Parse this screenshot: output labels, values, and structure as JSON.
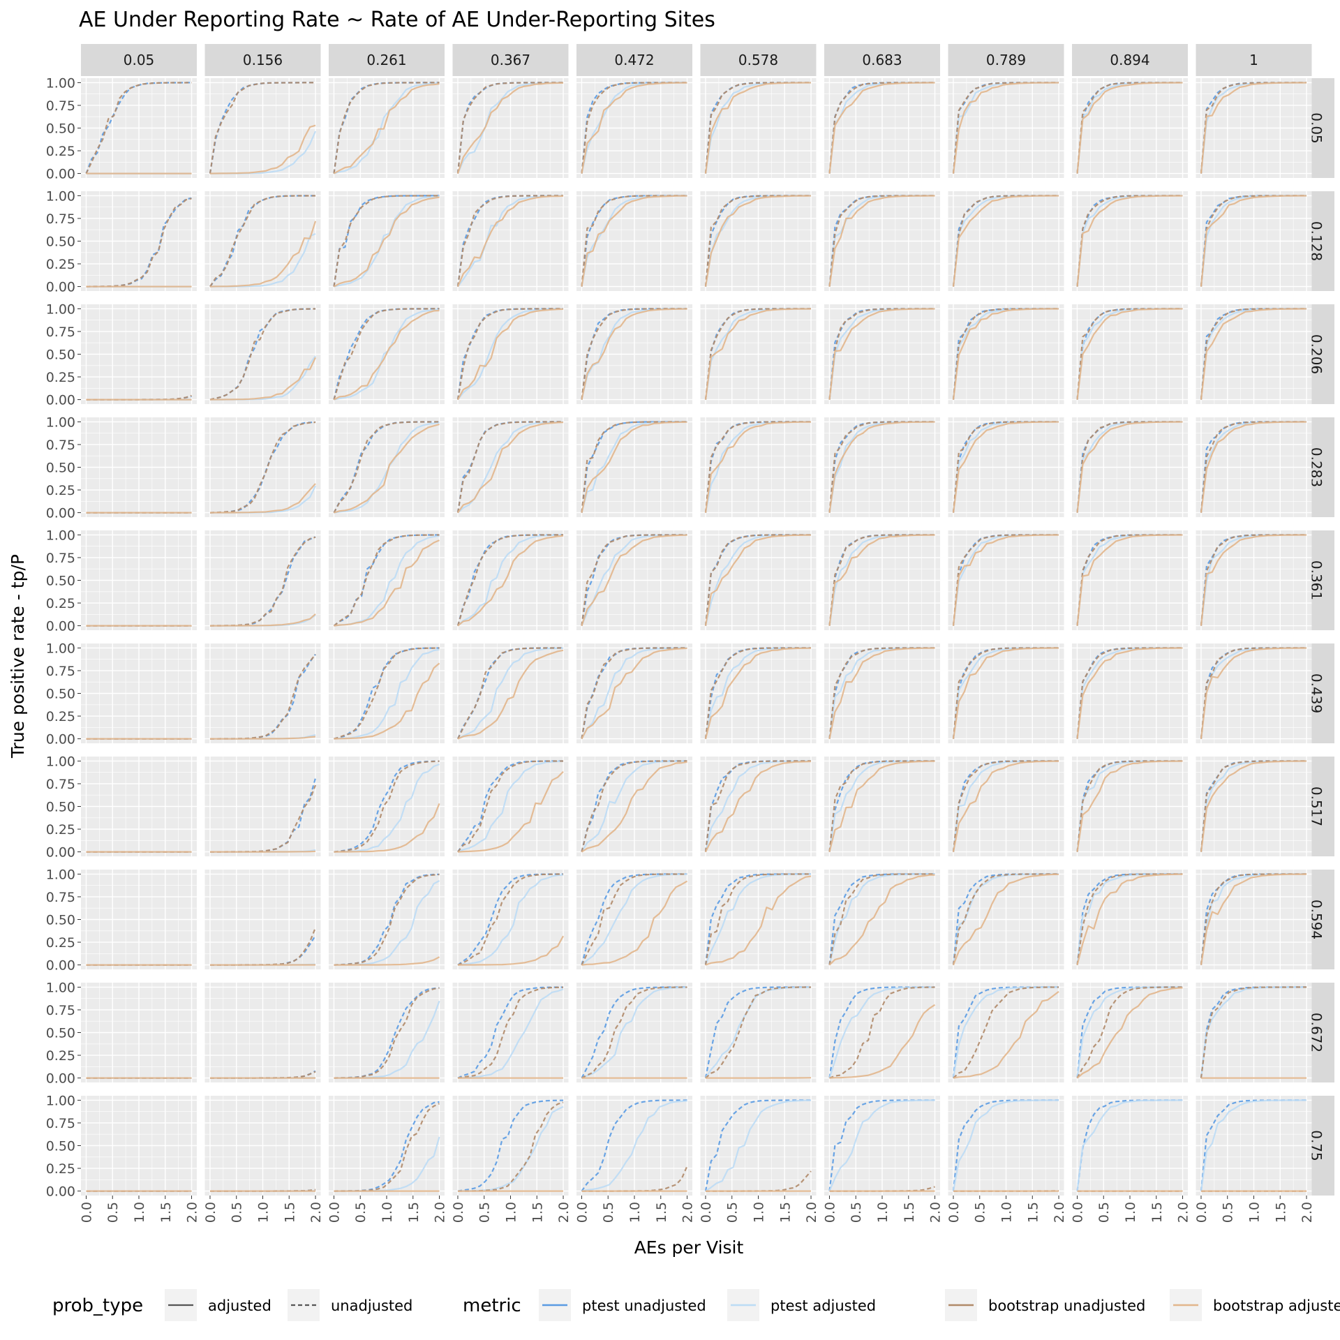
{
  "chart_data": {
    "type": "line",
    "title": "AE Under Reporting Rate ~ Rate of AE Under-Reporting Sites",
    "xlabel": "AEs per Visit",
    "ylabel": "True positive rate - tp/P",
    "xlim": [
      0,
      2
    ],
    "ylim": [
      0,
      1
    ],
    "x_ticks": [
      "0.0",
      "0.5",
      "1.0",
      "1.5",
      "2.0"
    ],
    "y_ticks": [
      "0.00",
      "0.25",
      "0.50",
      "0.75",
      "1.00"
    ],
    "col_facets": [
      "0.05",
      "0.156",
      "0.261",
      "0.367",
      "0.472",
      "0.578",
      "0.683",
      "0.789",
      "0.894",
      "1"
    ],
    "row_facets": [
      "0.05",
      "0.128",
      "0.206",
      "0.283",
      "0.361",
      "0.439",
      "0.517",
      "0.594",
      "0.672",
      "0.75"
    ],
    "x": [
      0.0,
      0.105,
      0.211,
      0.316,
      0.421,
      0.526,
      0.632,
      0.737,
      0.842,
      0.947,
      1.053,
      1.158,
      1.263,
      1.368,
      1.474,
      1.579,
      1.684,
      1.789,
      1.895,
      2.0
    ],
    "series": [
      {
        "metric": "ptest unadjusted",
        "prob_type": "unadjusted",
        "color": "#5a9be3",
        "dashed": true,
        "midpoint": [
          [
            0.4,
            0.2,
            0.1,
            0.06,
            0.03,
            0.02,
            0.01,
            0.005,
            0.003,
            0.001
          ],
          [
            1.4,
            0.5,
            0.2,
            0.12,
            0.06,
            0.03,
            0.02,
            0.01,
            0.005,
            0.003
          ],
          [
            2.5,
            0.8,
            0.3,
            0.15,
            0.08,
            0.05,
            0.03,
            0.02,
            0.01,
            0.005
          ],
          [
            3.5,
            1.1,
            0.45,
            0.2,
            0.1,
            0.06,
            0.04,
            0.03,
            0.015,
            0.01
          ],
          [
            4.5,
            1.4,
            0.6,
            0.3,
            0.15,
            0.08,
            0.05,
            0.04,
            0.02,
            0.015
          ],
          [
            5.5,
            1.6,
            0.75,
            0.4,
            0.2,
            0.1,
            0.06,
            0.05,
            0.03,
            0.02
          ],
          [
            6.5,
            1.8,
            0.9,
            0.5,
            0.25,
            0.12,
            0.08,
            0.06,
            0.04,
            0.03
          ],
          [
            7.5,
            2.1,
            1.05,
            0.6,
            0.3,
            0.15,
            0.1,
            0.07,
            0.05,
            0.04
          ],
          [
            8.5,
            2.4,
            1.2,
            0.7,
            0.4,
            0.2,
            0.12,
            0.08,
            0.06,
            0.05
          ],
          [
            9.5,
            2.7,
            1.35,
            0.85,
            0.5,
            0.25,
            0.15,
            0.1,
            0.07,
            0.06
          ]
        ],
        "steepness": 6.2
      },
      {
        "metric": "ptest adjusted",
        "prob_type": "adjusted",
        "color": "#bcdcf5",
        "dashed": false,
        "midpoint": [
          [
            5,
            2.0,
            0.9,
            0.5,
            0.28,
            0.15,
            0.08,
            0.05,
            0.03,
            0.02
          ],
          [
            5,
            1.9,
            0.95,
            0.55,
            0.3,
            0.18,
            0.1,
            0.06,
            0.04,
            0.03
          ],
          [
            5,
            2.0,
            1.0,
            0.6,
            0.33,
            0.2,
            0.12,
            0.07,
            0.05,
            0.04
          ],
          [
            5,
            2.2,
            1.05,
            0.65,
            0.38,
            0.23,
            0.14,
            0.08,
            0.06,
            0.05
          ],
          [
            5,
            2.4,
            1.1,
            0.7,
            0.42,
            0.26,
            0.16,
            0.1,
            0.07,
            0.06
          ],
          [
            5,
            2.6,
            1.2,
            0.75,
            0.48,
            0.3,
            0.19,
            0.12,
            0.08,
            0.07
          ],
          [
            5,
            2.8,
            1.35,
            0.85,
            0.55,
            0.35,
            0.22,
            0.14,
            0.1,
            0.08
          ],
          [
            5,
            3.0,
            1.5,
            1.05,
            0.65,
            0.42,
            0.27,
            0.17,
            0.12,
            0.1
          ],
          [
            5,
            3.2,
            1.7,
            1.25,
            0.8,
            0.55,
            0.35,
            0.2,
            0.14,
            0.12
          ],
          [
            5,
            3.4,
            1.95,
            1.45,
            1.0,
            0.7,
            0.45,
            0.25,
            0.17,
            0.14
          ]
        ],
        "steepness": 5.0
      },
      {
        "metric": "bootstrap unadjusted",
        "prob_type": "unadjusted",
        "color": "#b08a69",
        "dashed": true,
        "midpoint": [
          [
            0.4,
            0.2,
            0.1,
            0.06,
            0.03,
            0.02,
            0.01,
            0.005,
            0.003,
            0.001
          ],
          [
            1.4,
            0.5,
            0.2,
            0.12,
            0.06,
            0.03,
            0.02,
            0.01,
            0.005,
            0.003
          ],
          [
            2.5,
            0.8,
            0.3,
            0.15,
            0.08,
            0.05,
            0.03,
            0.02,
            0.01,
            0.005
          ],
          [
            3.5,
            1.1,
            0.45,
            0.2,
            0.1,
            0.06,
            0.04,
            0.03,
            0.015,
            0.01
          ],
          [
            4.5,
            1.4,
            0.6,
            0.3,
            0.15,
            0.08,
            0.05,
            0.04,
            0.02,
            0.015
          ],
          [
            5.5,
            1.6,
            0.75,
            0.4,
            0.2,
            0.1,
            0.06,
            0.05,
            0.03,
            0.02
          ],
          [
            6.5,
            1.8,
            0.95,
            0.55,
            0.28,
            0.14,
            0.09,
            0.07,
            0.05,
            0.03
          ],
          [
            7.5,
            2.1,
            1.1,
            0.7,
            0.4,
            0.25,
            0.2,
            0.18,
            0.1,
            0.05
          ],
          [
            8.5,
            2.4,
            1.25,
            0.9,
            0.65,
            0.6,
            0.75,
            0.6,
            0.45,
            0.08
          ],
          [
            9.5,
            2.7,
            1.45,
            1.4,
            2.2,
            2.2,
            2.5,
            3.0,
            3.5,
            5
          ]
        ],
        "steepness": 6.0
      },
      {
        "metric": "bootstrap adjusted",
        "prob_type": "adjusted",
        "color": "#e2b68c",
        "dashed": false,
        "midpoint": [
          [
            5,
            1.9,
            0.9,
            0.5,
            0.28,
            0.15,
            0.08,
            0.05,
            0.03,
            0.02
          ],
          [
            5,
            1.8,
            0.95,
            0.55,
            0.3,
            0.18,
            0.1,
            0.06,
            0.04,
            0.03
          ],
          [
            5,
            2.0,
            1.0,
            0.6,
            0.33,
            0.2,
            0.12,
            0.07,
            0.05,
            0.04
          ],
          [
            5,
            2.2,
            1.1,
            0.7,
            0.4,
            0.24,
            0.15,
            0.09,
            0.07,
            0.05
          ],
          [
            5,
            2.5,
            1.3,
            0.85,
            0.5,
            0.3,
            0.2,
            0.12,
            0.09,
            0.06
          ],
          [
            5,
            2.9,
            1.6,
            1.05,
            0.65,
            0.4,
            0.25,
            0.15,
            0.12,
            0.08
          ],
          [
            5,
            3.3,
            2.0,
            1.5,
            0.9,
            0.6,
            0.4,
            0.3,
            0.2,
            0.12
          ],
          [
            5,
            3.8,
            2.6,
            2.2,
            1.4,
            1.1,
            0.8,
            0.55,
            0.35,
            0.2
          ],
          [
            5,
            5,
            5,
            5,
            5,
            3.5,
            1.6,
            1.3,
            0.8,
            5
          ],
          [
            5,
            5,
            5,
            5,
            5,
            5,
            5,
            5,
            5,
            5
          ]
        ],
        "steepness": 4.0
      }
    ],
    "legend": {
      "placement": "bottom",
      "prob_type": {
        "title": "prob_type",
        "items": [
          {
            "label": "adjusted",
            "dashed": false
          },
          {
            "label": "unadjusted",
            "dashed": true
          }
        ]
      },
      "metric": {
        "title": "metric",
        "items": [
          {
            "label": "ptest unadjusted",
            "color": "#5a9be3"
          },
          {
            "label": "ptest adjusted",
            "color": "#bcdcf5"
          },
          {
            "label": "bootstrap unadjusted",
            "color": "#b08a69"
          },
          {
            "label": "bootstrap adjusted",
            "color": "#e2b68c"
          }
        ]
      }
    },
    "grid": true
  }
}
